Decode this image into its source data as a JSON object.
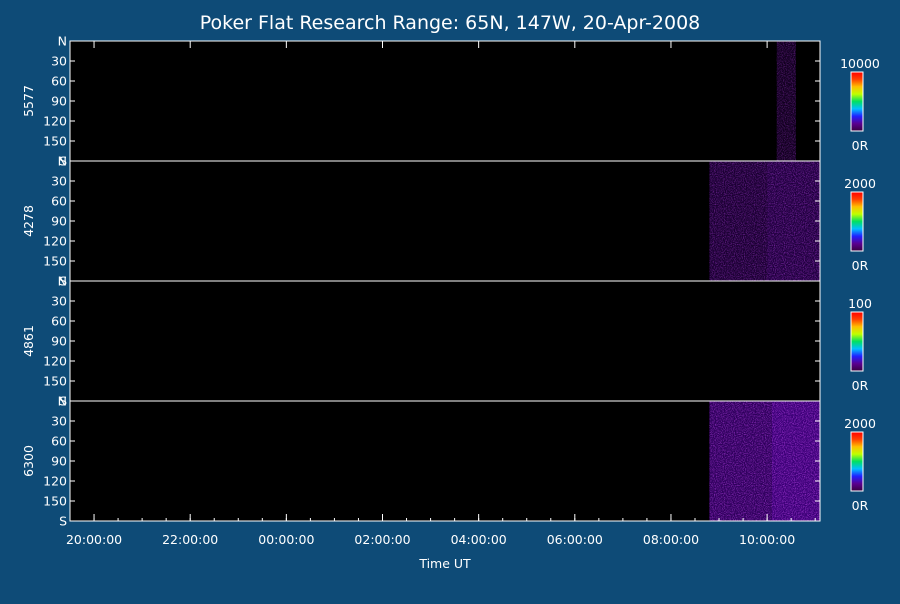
{
  "chart_data": {
    "type": "heatmap",
    "title": "Poker Flat Research Range: 65N, 147W, 20-Apr-2008",
    "xlabel": "Time UT",
    "x_ticks": [
      "20:00:00",
      "22:00:00",
      "00:00:00",
      "02:00:00",
      "04:00:00",
      "06:00:00",
      "08:00:00",
      "10:00:00"
    ],
    "x_range_hours": [
      19.5,
      35.1
    ],
    "y_ticks": [
      "N",
      "30",
      "60",
      "90",
      "120",
      "150",
      "S"
    ],
    "y_range_deg": [
      0,
      180
    ],
    "panels": [
      {
        "wavelength": "5577",
        "colorbar_max": "10000",
        "colorbar_min": "0R",
        "activity": [
          {
            "start_hour": 34.2,
            "end_hour": 34.6,
            "intensity": 0.08
          }
        ]
      },
      {
        "wavelength": "4278",
        "colorbar_max": "2000",
        "colorbar_min": "0R",
        "activity": [
          {
            "start_hour": 32.8,
            "end_hour": 34.0,
            "intensity": 0.25
          },
          {
            "start_hour": 34.0,
            "end_hour": 35.1,
            "intensity": 0.35
          }
        ]
      },
      {
        "wavelength": "4861",
        "colorbar_max": "100",
        "colorbar_min": "0R",
        "activity": []
      },
      {
        "wavelength": "6300",
        "colorbar_max": "2000",
        "colorbar_min": "0R",
        "activity": [
          {
            "start_hour": 32.8,
            "end_hour": 34.1,
            "intensity": 0.55
          },
          {
            "start_hour": 34.1,
            "end_hour": 35.1,
            "intensity": 0.7
          }
        ]
      }
    ],
    "colormap": [
      "#3a0040",
      "#5a0090",
      "#2020ff",
      "#00c0ff",
      "#00e060",
      "#c0ff00",
      "#ffc000",
      "#ff4000",
      "#ff0000"
    ],
    "grid": false
  },
  "colors": {
    "background": "#0e4b77",
    "plot_background": "#000000",
    "foreground": "#ffffff"
  }
}
